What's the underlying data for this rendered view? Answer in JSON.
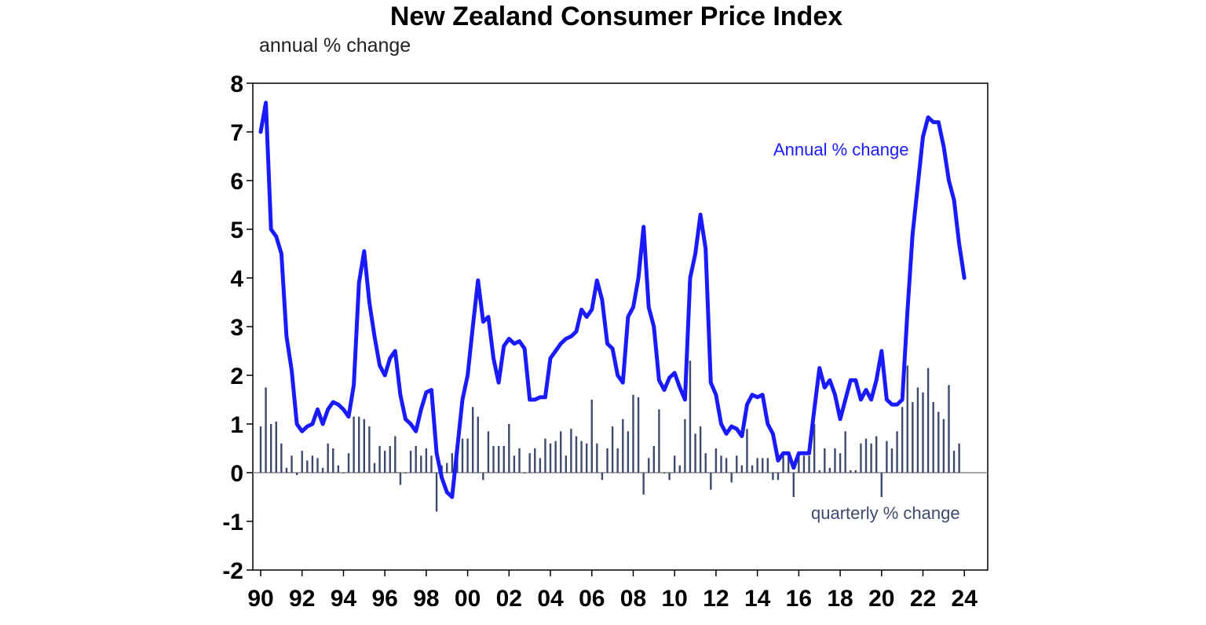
{
  "chart_data": {
    "type": "bar+line",
    "title": "New Zealand Consumer Price Index",
    "ylabel": "annual % change",
    "ylim": [
      -2,
      8
    ],
    "yticks": [
      "8",
      "7",
      "6",
      "5",
      "4",
      "3",
      "2",
      "1",
      "0",
      "-1",
      "-2"
    ],
    "xlim": [
      1990.0,
      2024.75
    ],
    "xticks": [
      "90",
      "92",
      "94",
      "96",
      "98",
      "00",
      "02",
      "04",
      "06",
      "08",
      "10",
      "12",
      "14",
      "16",
      "18",
      "20",
      "22",
      "24"
    ],
    "annotations": {
      "annual": "Annual % change",
      "quarterly": "quarterly % change"
    },
    "colors": {
      "annual": "#1a1aff",
      "quarterly": "#3d4a6b",
      "axis": "#000000"
    },
    "series": [
      {
        "name": "Annual % change",
        "kind": "line",
        "points": [
          [
            1990.0,
            7.0
          ],
          [
            1990.25,
            7.6
          ],
          [
            1990.5,
            5.0
          ],
          [
            1990.75,
            4.85
          ],
          [
            1991.0,
            4.5
          ],
          [
            1991.25,
            2.8
          ],
          [
            1991.5,
            2.1
          ],
          [
            1991.75,
            1.0
          ],
          [
            1992.0,
            0.85
          ],
          [
            1992.25,
            0.95
          ],
          [
            1992.5,
            1.0
          ],
          [
            1992.75,
            1.3
          ],
          [
            1993.0,
            1.0
          ],
          [
            1993.25,
            1.3
          ],
          [
            1993.5,
            1.45
          ],
          [
            1993.75,
            1.4
          ],
          [
            1994.0,
            1.3
          ],
          [
            1994.25,
            1.15
          ],
          [
            1994.5,
            1.8
          ],
          [
            1994.75,
            3.9
          ],
          [
            1995.0,
            4.55
          ],
          [
            1995.25,
            3.5
          ],
          [
            1995.5,
            2.8
          ],
          [
            1995.75,
            2.2
          ],
          [
            1996.0,
            2.0
          ],
          [
            1996.25,
            2.35
          ],
          [
            1996.5,
            2.5
          ],
          [
            1996.75,
            1.6
          ],
          [
            1997.0,
            1.1
          ],
          [
            1997.25,
            1.0
          ],
          [
            1997.5,
            0.85
          ],
          [
            1997.75,
            1.3
          ],
          [
            1998.0,
            1.65
          ],
          [
            1998.25,
            1.7
          ],
          [
            1998.5,
            0.4
          ],
          [
            1998.75,
            -0.1
          ],
          [
            1999.0,
            -0.4
          ],
          [
            1999.25,
            -0.5
          ],
          [
            1999.5,
            0.5
          ],
          [
            1999.75,
            1.5
          ],
          [
            2000.0,
            2.0
          ],
          [
            2000.25,
            3.0
          ],
          [
            2000.5,
            3.95
          ],
          [
            2000.75,
            3.1
          ],
          [
            2001.0,
            3.2
          ],
          [
            2001.25,
            2.35
          ],
          [
            2001.5,
            1.85
          ],
          [
            2001.75,
            2.6
          ],
          [
            2002.0,
            2.75
          ],
          [
            2002.25,
            2.65
          ],
          [
            2002.5,
            2.7
          ],
          [
            2002.75,
            2.55
          ],
          [
            2003.0,
            1.5
          ],
          [
            2003.25,
            1.5
          ],
          [
            2003.5,
            1.55
          ],
          [
            2003.75,
            1.55
          ],
          [
            2004.0,
            2.35
          ],
          [
            2004.25,
            2.5
          ],
          [
            2004.5,
            2.65
          ],
          [
            2004.75,
            2.75
          ],
          [
            2005.0,
            2.8
          ],
          [
            2005.25,
            2.9
          ],
          [
            2005.5,
            3.35
          ],
          [
            2005.75,
            3.2
          ],
          [
            2006.0,
            3.35
          ],
          [
            2006.25,
            3.95
          ],
          [
            2006.5,
            3.55
          ],
          [
            2006.75,
            2.65
          ],
          [
            2007.0,
            2.55
          ],
          [
            2007.25,
            2.0
          ],
          [
            2007.5,
            1.85
          ],
          [
            2007.75,
            3.2
          ],
          [
            2008.0,
            3.4
          ],
          [
            2008.25,
            4.0
          ],
          [
            2008.5,
            5.05
          ],
          [
            2008.75,
            3.4
          ],
          [
            2009.0,
            3.0
          ],
          [
            2009.25,
            1.9
          ],
          [
            2009.5,
            1.7
          ],
          [
            2009.75,
            1.95
          ],
          [
            2010.0,
            2.05
          ],
          [
            2010.25,
            1.75
          ],
          [
            2010.5,
            1.5
          ],
          [
            2010.75,
            4.0
          ],
          [
            2011.0,
            4.5
          ],
          [
            2011.25,
            5.3
          ],
          [
            2011.5,
            4.6
          ],
          [
            2011.75,
            1.85
          ],
          [
            2012.0,
            1.6
          ],
          [
            2012.25,
            1.0
          ],
          [
            2012.5,
            0.8
          ],
          [
            2012.75,
            0.95
          ],
          [
            2013.0,
            0.9
          ],
          [
            2013.25,
            0.75
          ],
          [
            2013.5,
            1.4
          ],
          [
            2013.75,
            1.6
          ],
          [
            2014.0,
            1.55
          ],
          [
            2014.25,
            1.6
          ],
          [
            2014.5,
            1.0
          ],
          [
            2014.75,
            0.8
          ],
          [
            2015.0,
            0.25
          ],
          [
            2015.25,
            0.4
          ],
          [
            2015.5,
            0.4
          ],
          [
            2015.75,
            0.1
          ],
          [
            2016.0,
            0.4
          ],
          [
            2016.25,
            0.4
          ],
          [
            2016.5,
            0.4
          ],
          [
            2016.75,
            1.3
          ],
          [
            2017.0,
            2.15
          ],
          [
            2017.25,
            1.75
          ],
          [
            2017.5,
            1.9
          ],
          [
            2017.75,
            1.6
          ],
          [
            2018.0,
            1.1
          ],
          [
            2018.25,
            1.5
          ],
          [
            2018.5,
            1.9
          ],
          [
            2018.75,
            1.9
          ],
          [
            2019.0,
            1.5
          ],
          [
            2019.25,
            1.7
          ],
          [
            2019.5,
            1.5
          ],
          [
            2019.75,
            1.9
          ],
          [
            2020.0,
            2.5
          ],
          [
            2020.25,
            1.5
          ],
          [
            2020.5,
            1.4
          ],
          [
            2020.75,
            1.4
          ],
          [
            2021.0,
            1.5
          ],
          [
            2021.25,
            3.3
          ],
          [
            2021.5,
            4.9
          ],
          [
            2021.75,
            5.9
          ],
          [
            2022.0,
            6.9
          ],
          [
            2022.25,
            7.3
          ],
          [
            2022.5,
            7.2
          ],
          [
            2022.75,
            7.2
          ],
          [
            2023.0,
            6.7
          ],
          [
            2023.25,
            6.0
          ],
          [
            2023.5,
            5.6
          ],
          [
            2023.75,
            4.7
          ],
          [
            2024.0,
            4.0
          ]
        ]
      },
      {
        "name": "quarterly % change",
        "kind": "bar",
        "points": [
          [
            1990.0,
            0.95
          ],
          [
            1990.25,
            1.75
          ],
          [
            1990.5,
            1.0
          ],
          [
            1990.75,
            1.05
          ],
          [
            1991.0,
            0.6
          ],
          [
            1991.25,
            0.1
          ],
          [
            1991.5,
            0.35
          ],
          [
            1991.75,
            -0.05
          ],
          [
            1992.0,
            0.45
          ],
          [
            1992.25,
            0.25
          ],
          [
            1992.5,
            0.35
          ],
          [
            1992.75,
            0.3
          ],
          [
            1993.0,
            0.1
          ],
          [
            1993.25,
            0.6
          ],
          [
            1993.5,
            0.5
          ],
          [
            1993.75,
            0.15
          ],
          [
            1994.0,
            0.0
          ],
          [
            1994.25,
            0.4
          ],
          [
            1994.5,
            1.15
          ],
          [
            1994.75,
            1.15
          ],
          [
            1995.0,
            1.1
          ],
          [
            1995.25,
            0.95
          ],
          [
            1995.5,
            0.2
          ],
          [
            1995.75,
            0.55
          ],
          [
            1996.0,
            0.45
          ],
          [
            1996.25,
            0.55
          ],
          [
            1996.5,
            0.75
          ],
          [
            1996.75,
            -0.25
          ],
          [
            1997.0,
            0.0
          ],
          [
            1997.25,
            0.45
          ],
          [
            1997.5,
            0.55
          ],
          [
            1997.75,
            0.35
          ],
          [
            1998.0,
            0.5
          ],
          [
            1998.25,
            0.35
          ],
          [
            1998.5,
            -0.8
          ],
          [
            1998.75,
            0.15
          ],
          [
            1999.0,
            0.2
          ],
          [
            1999.25,
            0.4
          ],
          [
            1999.5,
            0.65
          ],
          [
            1999.75,
            0.7
          ],
          [
            2000.0,
            0.7
          ],
          [
            2000.25,
            1.35
          ],
          [
            2000.5,
            1.15
          ],
          [
            2000.75,
            -0.15
          ],
          [
            2001.0,
            0.85
          ],
          [
            2001.25,
            0.55
          ],
          [
            2001.5,
            0.55
          ],
          [
            2001.75,
            0.55
          ],
          [
            2002.0,
            1.0
          ],
          [
            2002.25,
            0.35
          ],
          [
            2002.5,
            0.5
          ],
          [
            2002.75,
            0.0
          ],
          [
            2003.0,
            0.4
          ],
          [
            2003.25,
            0.5
          ],
          [
            2003.5,
            0.3
          ],
          [
            2003.75,
            0.7
          ],
          [
            2004.0,
            0.6
          ],
          [
            2004.25,
            0.65
          ],
          [
            2004.5,
            0.85
          ],
          [
            2004.75,
            0.35
          ],
          [
            2005.0,
            0.9
          ],
          [
            2005.25,
            0.75
          ],
          [
            2005.5,
            0.65
          ],
          [
            2005.75,
            0.6
          ],
          [
            2006.0,
            1.5
          ],
          [
            2006.25,
            0.6
          ],
          [
            2006.5,
            -0.15
          ],
          [
            2006.75,
            0.5
          ],
          [
            2007.0,
            0.95
          ],
          [
            2007.25,
            0.5
          ],
          [
            2007.5,
            1.1
          ],
          [
            2007.75,
            0.85
          ],
          [
            2008.0,
            1.6
          ],
          [
            2008.25,
            1.55
          ],
          [
            2008.5,
            -0.45
          ],
          [
            2008.75,
            0.3
          ],
          [
            2009.0,
            0.55
          ],
          [
            2009.25,
            1.3
          ],
          [
            2009.5,
            0.0
          ],
          [
            2009.75,
            -0.15
          ],
          [
            2010.0,
            0.35
          ],
          [
            2010.25,
            0.15
          ],
          [
            2010.5,
            1.1
          ],
          [
            2010.75,
            2.3
          ],
          [
            2011.0,
            0.8
          ],
          [
            2011.25,
            0.95
          ],
          [
            2011.5,
            0.4
          ],
          [
            2011.75,
            -0.35
          ],
          [
            2012.0,
            0.5
          ],
          [
            2012.25,
            0.35
          ],
          [
            2012.5,
            0.3
          ],
          [
            2012.75,
            -0.2
          ],
          [
            2013.0,
            0.35
          ],
          [
            2013.25,
            0.15
          ],
          [
            2013.5,
            0.9
          ],
          [
            2013.75,
            0.15
          ],
          [
            2014.0,
            0.3
          ],
          [
            2014.25,
            0.3
          ],
          [
            2014.5,
            0.3
          ],
          [
            2014.75,
            -0.15
          ],
          [
            2015.0,
            -0.15
          ],
          [
            2015.25,
            0.4
          ],
          [
            2015.5,
            0.35
          ],
          [
            2015.75,
            -0.5
          ],
          [
            2016.0,
            0.4
          ],
          [
            2016.25,
            0.35
          ],
          [
            2016.5,
            0.35
          ],
          [
            2016.75,
            1.0
          ],
          [
            2017.0,
            0.05
          ],
          [
            2017.25,
            0.5
          ],
          [
            2017.5,
            0.1
          ],
          [
            2017.75,
            0.5
          ],
          [
            2018.0,
            0.4
          ],
          [
            2018.25,
            0.85
          ],
          [
            2018.5,
            0.05
          ],
          [
            2018.75,
            0.05
          ],
          [
            2019.0,
            0.6
          ],
          [
            2019.25,
            0.7
          ],
          [
            2019.5,
            0.6
          ],
          [
            2019.75,
            0.75
          ],
          [
            2020.0,
            -0.5
          ],
          [
            2020.25,
            0.65
          ],
          [
            2020.5,
            0.5
          ],
          [
            2020.75,
            0.85
          ],
          [
            2021.0,
            1.35
          ],
          [
            2021.25,
            2.2
          ],
          [
            2021.5,
            1.45
          ],
          [
            2021.75,
            1.75
          ],
          [
            2022.0,
            1.65
          ],
          [
            2022.25,
            2.15
          ],
          [
            2022.5,
            1.45
          ],
          [
            2022.75,
            1.25
          ],
          [
            2023.0,
            1.1
          ],
          [
            2023.25,
            1.8
          ],
          [
            2023.5,
            0.45
          ],
          [
            2023.75,
            0.6
          ]
        ]
      }
    ]
  }
}
